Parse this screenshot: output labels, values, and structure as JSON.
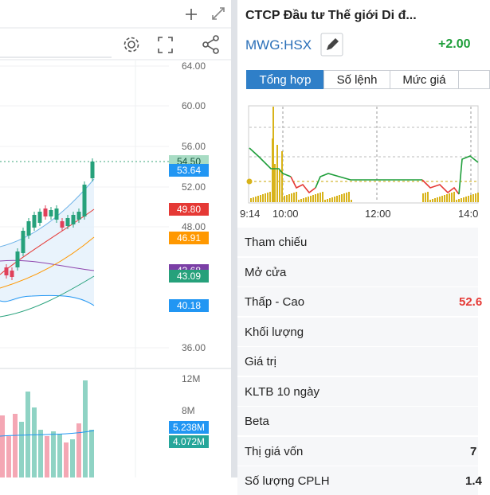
{
  "chart_panel": {
    "price_axis": [
      "64.00",
      "60.00",
      "56.00",
      "52.00",
      "48.00",
      "36.00"
    ],
    "price_badges": [
      "54.50",
      "53.64",
      "49.80",
      "46.91",
      "43.68",
      "43.09",
      "40.18"
    ],
    "volume_axis": [
      "12M",
      "8M"
    ],
    "volume_badges": [
      "5.238M",
      "4.072M"
    ]
  },
  "header": {
    "title": "CTCP Đầu tư Thế giới Di đ...",
    "ticker": "MWG:HSX",
    "change": "+2.00"
  },
  "tabs": [
    "Tổng hợp",
    "Số lệnh",
    "Mức giá"
  ],
  "intraday_chart": {
    "time_labels": [
      "9:14",
      "10:00",
      "12:00",
      "14:0"
    ]
  },
  "stats": {
    "rows": [
      {
        "label": "Tham chiếu"
      },
      {
        "label": "Mở cửa"
      },
      {
        "label": "Thấp - Cao",
        "value": "52.6"
      },
      {
        "label": "Khối lượng"
      },
      {
        "label": "Giá trị"
      },
      {
        "label": "KLTB 10 ngày"
      },
      {
        "label": "Beta"
      },
      {
        "label": "Thị giá vốn",
        "value": "7"
      },
      {
        "label": "Số lượng CPLH",
        "value": "1.4"
      }
    ]
  }
}
